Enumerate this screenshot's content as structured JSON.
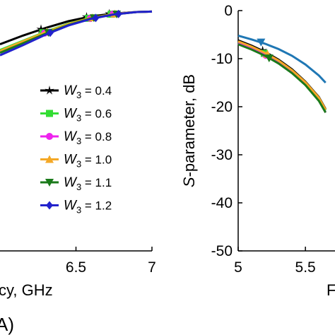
{
  "chart_data": [
    {
      "type": "line",
      "x": [
        6.0,
        6.15,
        6.3,
        6.45,
        6.6,
        6.75,
        6.9,
        7.0
      ],
      "x_ticks": [
        6.5,
        7
      ],
      "xlim": [
        6.0,
        7.0
      ],
      "ylim": [
        -50,
        0
      ],
      "xlabel": "cy, GHz",
      "panel_label": "A)",
      "legend_position": "center-right",
      "grid": false,
      "series": [
        {
          "name": "W3 = 0.4",
          "sub": "3",
          "value_label": " = 0.4",
          "color": "#000000",
          "marker": "star",
          "values": [
            -7,
            -5.2,
            -3.6,
            -2.2,
            -1.2,
            -0.6,
            -0.3,
            -0.2
          ]
        },
        {
          "name": "W3 = 0.6",
          "sub": "3",
          "value_label": " = 0.6",
          "color": "#33dd33",
          "marker": "square",
          "values": [
            -8.2,
            -6.3,
            -4.4,
            -2.7,
            -1.5,
            -0.7,
            -0.3,
            -0.2
          ]
        },
        {
          "name": "W3 = 0.8",
          "sub": "3",
          "value_label": " = 0.8",
          "color": "#ee22ee",
          "marker": "circle",
          "values": [
            -8.6,
            -6.6,
            -4.6,
            -2.9,
            -1.6,
            -0.7,
            -0.3,
            -0.2
          ]
        },
        {
          "name": "W3 = 1.0",
          "sub": "3",
          "value_label": " = 1.0",
          "color": "#f4a826",
          "marker": "triangle-up",
          "values": [
            -8.4,
            -6.4,
            -4.5,
            -2.8,
            -1.5,
            -0.7,
            -0.3,
            -0.2
          ]
        },
        {
          "name": "W3 = 1.1",
          "sub": "3",
          "value_label": " = 1.1",
          "color": "#1a7a1a",
          "marker": "triangle-down",
          "values": [
            -8.8,
            -6.8,
            -4.8,
            -3.0,
            -1.6,
            -0.8,
            -0.3,
            -0.2
          ]
        },
        {
          "name": "W3 = 1.2",
          "sub": "3",
          "value_label": " = 1.2",
          "color": "#2222cc",
          "marker": "diamond",
          "values": [
            -9.3,
            -7.2,
            -5.0,
            -3.1,
            -1.7,
            -0.8,
            -0.3,
            -0.2
          ]
        }
      ]
    },
    {
      "type": "line",
      "x": [
        5.0,
        5.1,
        5.2,
        5.3,
        5.4,
        5.5,
        5.6,
        5.65
      ],
      "x_ticks": [
        5,
        5.5
      ],
      "y_ticks": [
        0,
        -10,
        -20,
        -30,
        -40,
        -50
      ],
      "xlim": [
        5.0,
        5.72
      ],
      "ylim": [
        -50,
        0
      ],
      "ylabel_italic": "S",
      "ylabel_rest": "-parameter, dB",
      "xlabel": "F",
      "grid": false,
      "series": [
        {
          "color": "#1f77b4",
          "marker": "triangle-down",
          "values": [
            -5.2,
            -6.0,
            -6.9,
            -8.0,
            -9.4,
            -11.2,
            -13.5,
            -15.0
          ]
        },
        {
          "color": "#000000",
          "marker": "star",
          "values": [
            -6.2,
            -7.3,
            -8.6,
            -10.2,
            -12.2,
            -14.8,
            -18.0,
            -20.5
          ]
        },
        {
          "color": "#33dd33",
          "marker": "square",
          "values": [
            -6.6,
            -7.7,
            -9.0,
            -10.6,
            -12.6,
            -15.2,
            -18.4,
            -20.8
          ]
        },
        {
          "color": "#ee22ee",
          "marker": "circle",
          "values": [
            -6.8,
            -7.9,
            -9.2,
            -10.8,
            -12.8,
            -15.3,
            -18.5,
            -21.2
          ]
        },
        {
          "color": "#f4a826",
          "marker": "triangle-up",
          "values": [
            -6.4,
            -7.5,
            -8.8,
            -10.4,
            -12.4,
            -14.9,
            -18.1,
            -20.6
          ]
        },
        {
          "color": "#1a7a1a",
          "marker": "triangle-down",
          "values": [
            -7.0,
            -8.1,
            -9.4,
            -11.0,
            -13.0,
            -15.5,
            -18.8,
            -21.2
          ]
        }
      ]
    }
  ]
}
